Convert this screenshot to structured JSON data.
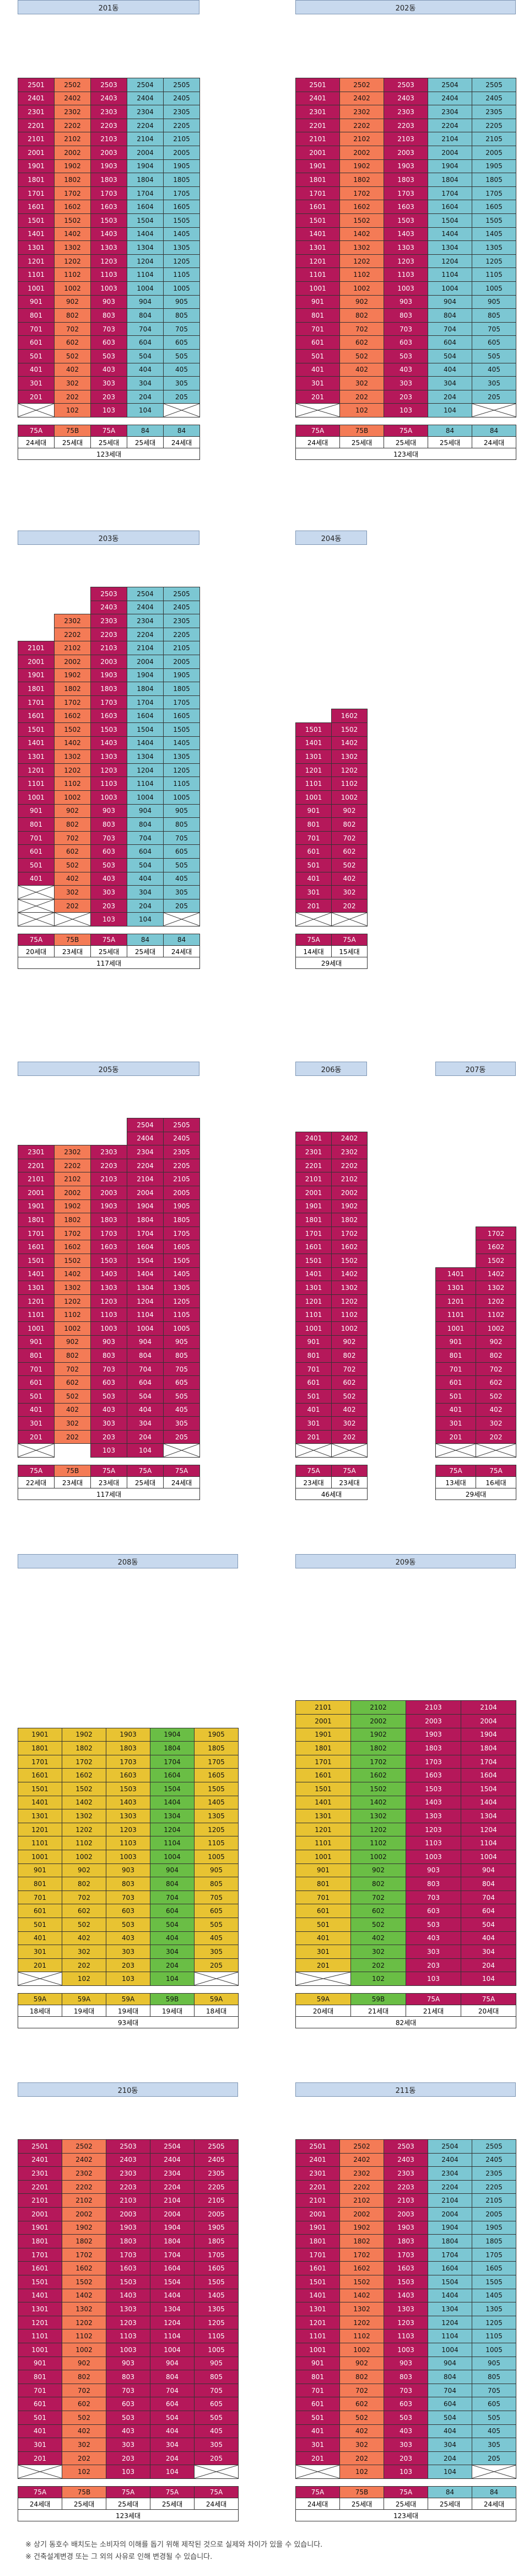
{
  "colors": {
    "c75A": "#b5185a",
    "c75B": "#f47b56",
    "c84": "#7cc7d3",
    "c59A": "#e8c332",
    "c59B": "#6abe45",
    "header": "#c8d9ee",
    "xcell": "#ffffff",
    "line": "#333333"
  },
  "blocks": [
    {
      "id": "201",
      "title": "201동",
      "tower_cols": [
        [
          "75A",
          [
            2,
            25
          ],
          [
            102,
            25
          ]
        ],
        [
          "75B",
          [
            2,
            25
          ]
        ],
        [
          "75A",
          [
            1,
            25
          ]
        ],
        [
          "84",
          [
            1,
            25
          ]
        ],
        [
          "84",
          [
            2,
            25
          ]
        ]
      ],
      "types": [
        "75A",
        "75B",
        "75A",
        "84",
        "84"
      ],
      "counts": [
        "24세대",
        "25세대",
        "25세대",
        "25세대",
        "24세대"
      ],
      "total": "123세대"
    },
    {
      "id": "202",
      "title": "202동",
      "types": [
        "75A",
        "75B",
        "75A",
        "84",
        "84"
      ],
      "counts": [
        "24세대",
        "25세대",
        "25세대",
        "25세대",
        "24세대"
      ],
      "total": "123세대"
    },
    {
      "id": "203",
      "title": "203동",
      "types": [
        "75A",
        "75B",
        "75A",
        "84",
        "84"
      ],
      "counts": [
        "20세대",
        "23세대",
        "25세대",
        "25세대",
        "24세대"
      ],
      "total": "117세대"
    },
    {
      "id": "204",
      "title": "204동",
      "types": [
        "75A",
        "75A"
      ],
      "counts": [
        "14세대",
        "15세대"
      ],
      "total": "29세대"
    },
    {
      "id": "205",
      "title": "205동",
      "types": [
        "75A",
        "75B",
        "75A",
        "75A",
        "75A"
      ],
      "counts": [
        "22세대",
        "23세대",
        "23세대",
        "25세대",
        "24세대"
      ],
      "total": "117세대"
    },
    {
      "id": "206",
      "title": "206동",
      "types": [
        "75A",
        "75A"
      ],
      "counts": [
        "23세대",
        "23세대"
      ],
      "total": "46세대"
    },
    {
      "id": "207",
      "title": "207동",
      "types": [
        "75A",
        "75A"
      ],
      "counts": [
        "13세대",
        "16세대"
      ],
      "total": "29세대"
    },
    {
      "id": "208",
      "title": "208동",
      "types": [
        "59A",
        "59A",
        "59A",
        "59B",
        "59A"
      ],
      "counts": [
        "18세대",
        "19세대",
        "19세대",
        "19세대",
        "18세대"
      ],
      "total": "93세대"
    },
    {
      "id": "209",
      "title": "209동",
      "types": [
        "59A",
        "59B",
        "75A",
        "75A"
      ],
      "counts": [
        "20세대",
        "21세대",
        "21세대",
        "20세대"
      ],
      "total": "82세대"
    },
    {
      "id": "210",
      "title": "210동",
      "types": [
        "75A",
        "75B",
        "75A",
        "75A",
        "75A"
      ],
      "counts": [
        "24세대",
        "25세대",
        "25세대",
        "25세대",
        "24세대"
      ],
      "total": "123세대"
    },
    {
      "id": "211",
      "title": "211동",
      "types": [
        "75A",
        "75B",
        "75A",
        "84",
        "84"
      ],
      "counts": [
        "24세대",
        "25세대",
        "25세대",
        "25세대",
        "24세대"
      ],
      "total": "123세대"
    }
  ],
  "notes": [
    "※ 상기 동호수 배치도는 소비자의 이해를 돕기 위해 제작된 것으로 실제와 차이가 있을 수 있습니다.",
    "※ 건축설계변경 또는 그 외의 사유로 인해 변경될 수 있습니다."
  ]
}
